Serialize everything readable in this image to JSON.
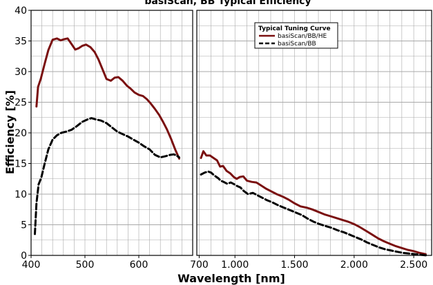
{
  "chart_data": {
    "type": "line",
    "title": "basiScan, BB Typical Efficiency",
    "xlabel": "Wavelength [nm]",
    "ylabel": "Efficiency [%]",
    "ylim": [
      0,
      40
    ],
    "yticks": [
      "0",
      "5",
      "10",
      "15",
      "20",
      "25",
      "30",
      "35",
      "40"
    ],
    "grid": true,
    "legend_title": "Typical Tuning Curve",
    "legend_position": "top-right",
    "colors": {
      "he": "#7a0f0f",
      "bb": "#000000",
      "grid": "#a8a8a8",
      "axis": "#000000"
    },
    "panels": [
      {
        "name": "left",
        "xlim": [
          400,
          700
        ],
        "xticks": [
          {
            "value": 400,
            "label": "400"
          },
          {
            "value": 500,
            "label": "500"
          },
          {
            "value": 600,
            "label": "600"
          }
        ],
        "series": [
          {
            "name": "basiScan/BB/HE",
            "style": "solid",
            "x": [
              410,
              413,
              418,
              425,
              432,
              440,
              448,
              455,
              462,
              468,
              475,
              482,
              488,
              495,
              502,
              510,
              518,
              525,
              532,
              540,
              548,
              555,
              562,
              570,
              578,
              585,
              592,
              600,
              608,
              615,
              622,
              630,
              638,
              645,
              652,
              660,
              668,
              675
            ],
            "y": [
              24.3,
              27.5,
              28.8,
              31.2,
              33.5,
              35.2,
              35.4,
              35.1,
              35.3,
              35.4,
              34.5,
              33.6,
              33.8,
              34.2,
              34.4,
              34.0,
              33.2,
              32.0,
              30.5,
              28.8,
              28.5,
              29.0,
              29.1,
              28.5,
              27.7,
              27.2,
              26.6,
              26.2,
              26.0,
              25.5,
              24.8,
              23.9,
              22.9,
              21.8,
              20.6,
              19.0,
              17.2,
              15.8
            ]
          },
          {
            "name": "basiScan/BB",
            "style": "dashed",
            "x": [
              407,
              410,
              414,
              419,
              425,
              432,
              440,
              448,
              456,
              465,
              475,
              485,
              495,
              505,
              512,
              520,
              530,
              540,
              550,
              560,
              570,
              580,
              590,
              600,
              610,
              620,
              630,
              640,
              650,
              658,
              665,
              670,
              675
            ],
            "y": [
              3.5,
              8.5,
              11.6,
              12.7,
              14.9,
              17.3,
              18.9,
              19.6,
              20.0,
              20.2,
              20.5,
              21.1,
              21.8,
              22.2,
              22.4,
              22.2,
              22.0,
              21.6,
              20.9,
              20.2,
              19.8,
              19.4,
              18.9,
              18.4,
              17.8,
              17.3,
              16.4,
              16.0,
              16.2,
              16.4,
              16.5,
              16.3,
              16.0
            ]
          }
        ]
      },
      {
        "name": "right",
        "xlim": [
          680,
          2650
        ],
        "xticks": [
          {
            "value": 700,
            "label": "700"
          },
          {
            "value": 1000,
            "label": "1.000"
          },
          {
            "value": 1500,
            "label": "1.500"
          },
          {
            "value": 2000,
            "label": "2.000"
          },
          {
            "value": 2500,
            "label": "2.500"
          }
        ],
        "series": [
          {
            "name": "basiScan/BB/HE",
            "style": "solid",
            "x": [
              715,
              735,
              760,
              790,
              820,
              850,
              875,
              900,
              930,
              960,
              990,
              1015,
              1040,
              1070,
              1100,
              1140,
              1180,
              1220,
              1260,
              1300,
              1350,
              1400,
              1450,
              1500,
              1550,
              1600,
              1650,
              1700,
              1750,
              1800,
              1850,
              1900,
              1950,
              2000,
              2050,
              2100,
              2150,
              2200,
              2250,
              2300,
              2350,
              2400,
              2450,
              2500,
              2550,
              2600
            ],
            "y": [
              15.9,
              17.0,
              16.3,
              16.3,
              15.9,
              15.5,
              14.5,
              14.6,
              13.8,
              13.4,
              12.8,
              12.5,
              12.8,
              12.9,
              12.2,
              12.0,
              11.9,
              11.4,
              10.9,
              10.5,
              10.0,
              9.6,
              9.1,
              8.5,
              8.0,
              7.8,
              7.5,
              7.1,
              6.7,
              6.4,
              6.1,
              5.8,
              5.5,
              5.1,
              4.6,
              4.0,
              3.4,
              2.8,
              2.3,
              1.9,
              1.5,
              1.2,
              0.9,
              0.7,
              0.4,
              0.2
            ]
          },
          {
            "name": "basiScan/BB",
            "style": "dashed",
            "x": [
              715,
              745,
              775,
              800,
              830,
              860,
              880,
              905,
              935,
              965,
              995,
              1020,
              1045,
              1075,
              1110,
              1150,
              1190,
              1230,
              1270,
              1310,
              1360,
              1410,
              1460,
              1510,
              1560,
              1610,
              1660,
              1710,
              1760,
              1810,
              1860,
              1910,
              1960,
              2010,
              2060,
              2110,
              2160,
              2210,
              2260,
              2310,
              2360,
              2410,
              2460,
              2510,
              2560,
              2610
            ],
            "y": [
              13.2,
              13.5,
              13.7,
              13.5,
              13.0,
              12.6,
              12.2,
              12.0,
              11.7,
              11.9,
              11.6,
              11.3,
              11.1,
              10.5,
              10.0,
              10.2,
              9.8,
              9.4,
              9.0,
              8.7,
              8.2,
              7.8,
              7.4,
              7.0,
              6.6,
              6.0,
              5.5,
              5.1,
              4.8,
              4.5,
              4.1,
              3.8,
              3.4,
              3.0,
              2.6,
              2.1,
              1.7,
              1.3,
              1.0,
              0.8,
              0.6,
              0.4,
              0.3,
              0.2,
              0.1,
              0.0
            ]
          }
        ]
      }
    ]
  }
}
